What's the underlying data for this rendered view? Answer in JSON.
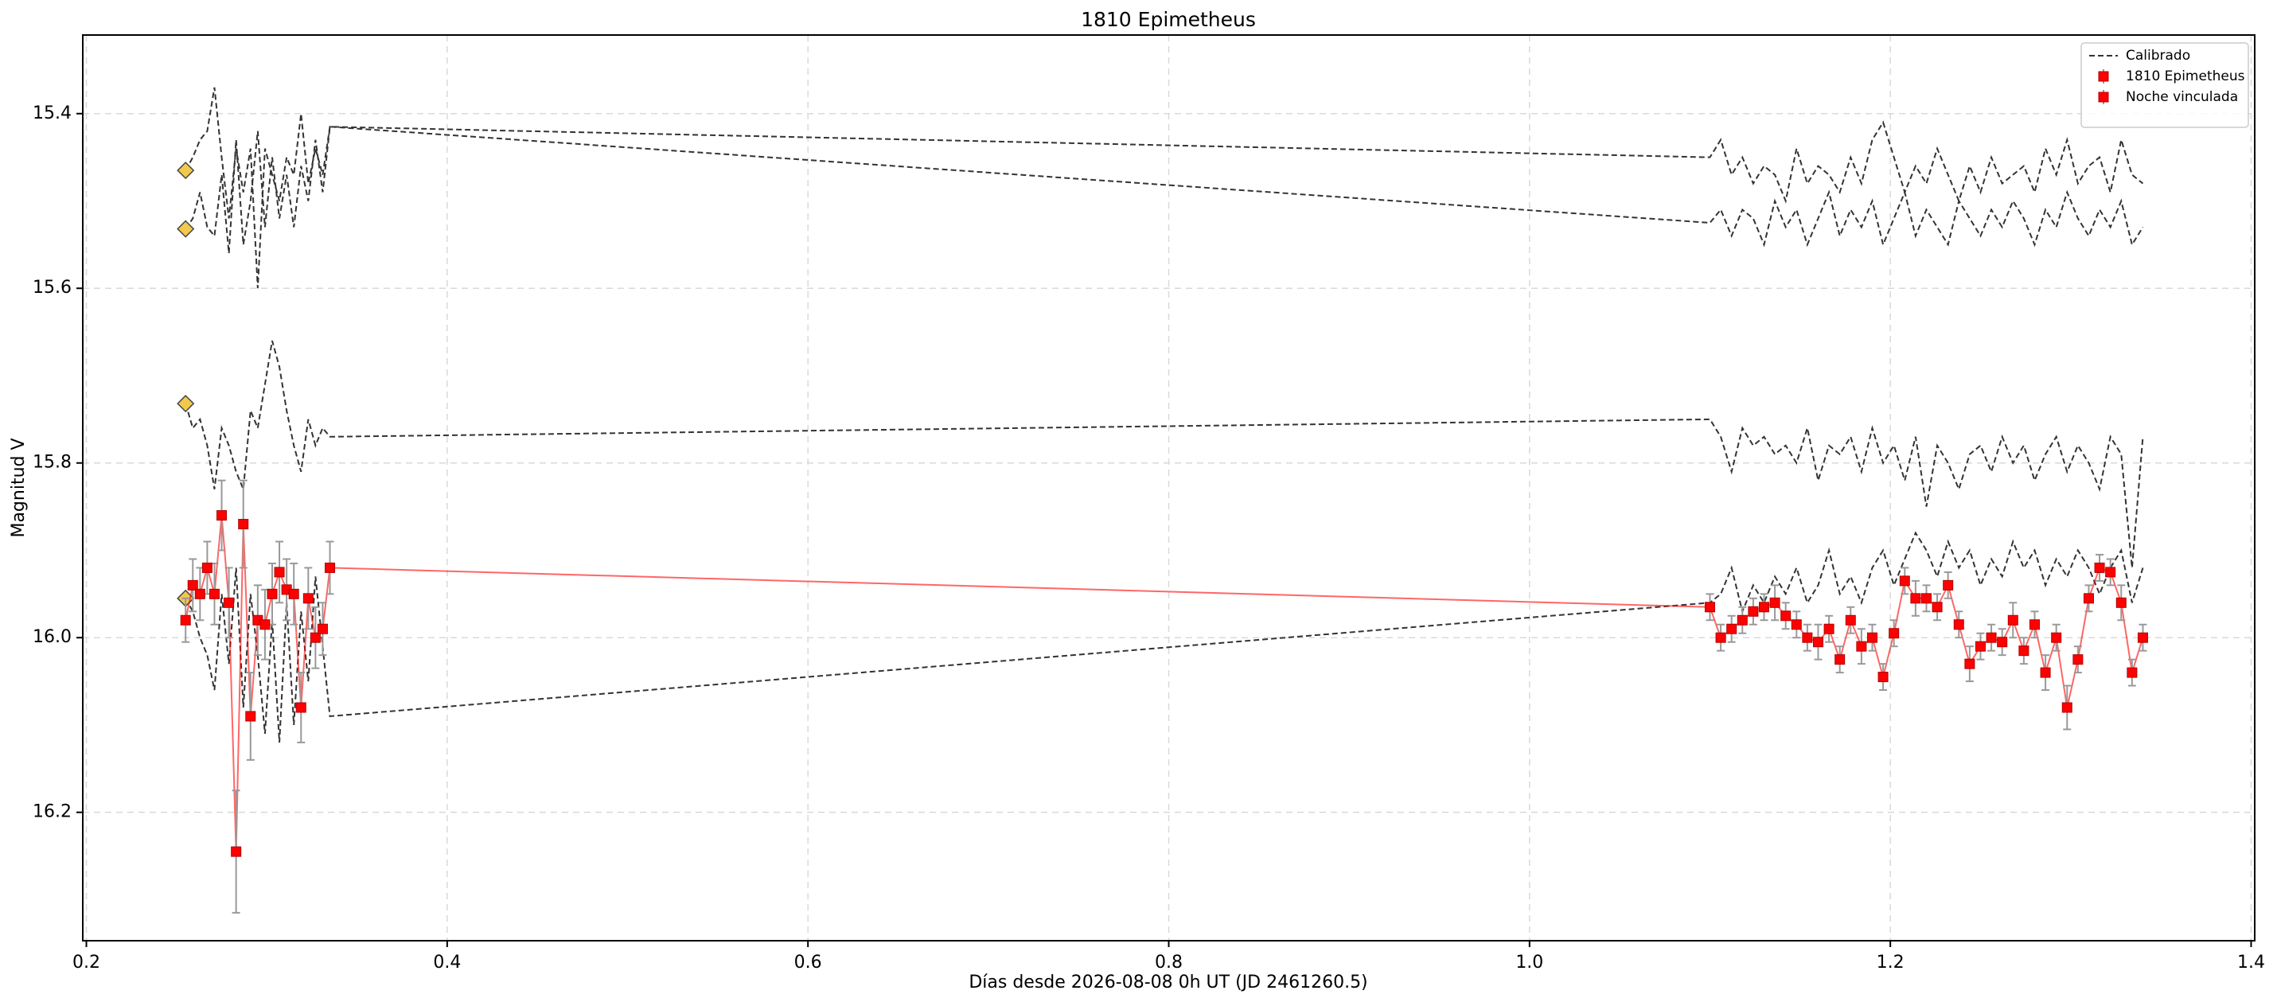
{
  "chart_data": {
    "type": "line",
    "title": "1810 Epimetheus",
    "xlabel": "Días desde 2026-08-08 0h UT (JD 2461260.5)",
    "ylabel": "Magnitud V",
    "xlim": [
      0.198,
      1.402
    ],
    "ylim": [
      15.31,
      16.347
    ],
    "y_inverted": true,
    "grid": true,
    "legend": "upper right",
    "xticks": [
      0.2,
      0.4,
      0.6,
      0.8,
      {
        "value": 1.0,
        "label": "1.0"
      },
      1.2,
      1.4
    ],
    "yticks": [
      15.4,
      15.6,
      15.8,
      {
        "value": 16.0,
        "label": "16.0"
      },
      16.2
    ],
    "calibrated": {
      "name": "Calibrado",
      "color": "#333333",
      "x": [
        0.255,
        0.259,
        0.263,
        0.267,
        0.271,
        0.275,
        0.279,
        0.283,
        0.287,
        0.291,
        0.295,
        0.299,
        0.303,
        0.307,
        0.311,
        0.315,
        0.319,
        0.323,
        0.327,
        0.331,
        0.335,
        1.1,
        1.106,
        1.112,
        1.118,
        1.124,
        1.13,
        1.136,
        1.142,
        1.148,
        1.154,
        1.16,
        1.166,
        1.172,
        1.178,
        1.184,
        1.19,
        1.196,
        1.202,
        1.208,
        1.214,
        1.22,
        1.226,
        1.232,
        1.238,
        1.244,
        1.25,
        1.256,
        1.262,
        1.268,
        1.274,
        1.28,
        1.286,
        1.292,
        1.298,
        1.304,
        1.31,
        1.316,
        1.322,
        1.328,
        1.334,
        1.34
      ],
      "lines": [
        [
          15.465,
          15.45,
          15.43,
          15.42,
          15.37,
          15.45,
          15.52,
          15.44,
          15.49,
          15.44,
          15.6,
          15.44,
          15.47,
          15.5,
          15.45,
          15.47,
          15.4,
          15.48,
          15.44,
          15.47,
          15.415,
          15.45,
          15.43,
          15.47,
          15.45,
          15.48,
          15.46,
          15.47,
          15.5,
          15.44,
          15.48,
          15.46,
          15.47,
          15.49,
          15.45,
          15.48,
          15.43,
          15.41,
          15.45,
          15.49,
          15.46,
          15.48,
          15.44,
          15.47,
          15.5,
          15.46,
          15.49,
          15.45,
          15.48,
          15.47,
          15.46,
          15.49,
          15.44,
          15.47,
          15.43,
          15.48,
          15.46,
          15.45,
          15.49,
          15.43,
          15.47,
          15.48
        ],
        [
          15.532,
          15.52,
          15.49,
          15.53,
          15.54,
          15.47,
          15.56,
          15.43,
          15.55,
          15.5,
          15.42,
          15.53,
          15.45,
          15.52,
          15.47,
          15.53,
          15.46,
          15.5,
          15.43,
          15.49,
          15.415,
          15.525,
          15.51,
          15.54,
          15.51,
          15.52,
          15.55,
          15.5,
          15.53,
          15.51,
          15.55,
          15.52,
          15.49,
          15.54,
          15.51,
          15.53,
          15.5,
          15.55,
          15.52,
          15.49,
          15.54,
          15.51,
          15.53,
          15.55,
          15.5,
          15.52,
          15.54,
          15.51,
          15.53,
          15.5,
          15.52,
          15.55,
          15.51,
          15.53,
          15.49,
          15.52,
          15.54,
          15.51,
          15.53,
          15.5,
          15.55,
          15.53
        ],
        [
          15.732,
          15.76,
          15.75,
          15.78,
          15.83,
          15.76,
          15.78,
          15.81,
          15.83,
          15.74,
          15.76,
          15.71,
          15.66,
          15.69,
          15.74,
          15.78,
          15.81,
          15.75,
          15.78,
          15.76,
          15.77,
          15.75,
          15.77,
          15.81,
          15.76,
          15.78,
          15.77,
          15.79,
          15.78,
          15.8,
          15.76,
          15.82,
          15.78,
          15.79,
          15.77,
          15.81,
          15.76,
          15.8,
          15.78,
          15.82,
          15.77,
          15.85,
          15.78,
          15.8,
          15.83,
          15.79,
          15.78,
          15.81,
          15.77,
          15.8,
          15.78,
          15.82,
          15.79,
          15.77,
          15.81,
          15.78,
          15.8,
          15.83,
          15.77,
          15.79,
          15.92,
          15.77
        ],
        [
          15.955,
          15.97,
          16.0,
          16.02,
          16.06,
          15.95,
          16.03,
          15.92,
          16.08,
          15.95,
          16.02,
          16.11,
          15.98,
          16.12,
          15.96,
          16.1,
          15.97,
          16.05,
          15.93,
          16.01,
          16.09,
          15.96,
          15.95,
          15.92,
          15.97,
          15.94,
          15.96,
          15.93,
          15.95,
          15.92,
          15.96,
          15.94,
          15.9,
          15.95,
          15.93,
          15.96,
          15.92,
          15.9,
          15.94,
          15.91,
          15.88,
          15.9,
          15.93,
          15.89,
          15.92,
          15.9,
          15.94,
          15.91,
          15.93,
          15.89,
          15.92,
          15.9,
          15.94,
          15.91,
          15.93,
          15.9,
          15.92,
          15.95,
          15.92,
          15.9,
          15.96,
          15.92
        ]
      ]
    },
    "markers": {
      "color": "#f2c94c",
      "x": [
        0.255,
        0.255,
        0.255,
        0.255
      ],
      "values": [
        15.465,
        15.532,
        15.732,
        15.955
      ]
    },
    "series": [
      {
        "name": "1810 Epimetheus",
        "color": "#ff0000",
        "x": [
          0.255,
          0.259,
          0.263,
          0.267,
          0.271,
          0.275,
          0.279,
          0.283,
          0.287,
          0.291,
          0.295,
          0.299,
          0.303,
          0.307,
          0.311,
          0.315,
          0.319,
          0.323,
          0.327,
          0.331,
          0.335
        ],
        "values": [
          15.98,
          15.94,
          15.95,
          15.92,
          15.95,
          15.86,
          15.96,
          16.245,
          15.87,
          16.09,
          15.98,
          15.985,
          15.95,
          15.925,
          15.945,
          15.95,
          16.08,
          15.955,
          16.0,
          15.99,
          15.92
        ],
        "errors": [
          0.025,
          0.03,
          0.03,
          0.03,
          0.035,
          0.04,
          0.04,
          0.07,
          0.05,
          0.05,
          0.04,
          0.04,
          0.035,
          0.035,
          0.035,
          0.035,
          0.04,
          0.035,
          0.035,
          0.03,
          0.03
        ]
      },
      {
        "name": "Noche vinculada",
        "color": "#ff0000",
        "x": [
          1.1,
          1.106,
          1.112,
          1.118,
          1.124,
          1.13,
          1.136,
          1.142,
          1.148,
          1.154,
          1.16,
          1.166,
          1.172,
          1.178,
          1.184,
          1.19,
          1.196,
          1.202,
          1.208,
          1.214,
          1.22,
          1.226,
          1.232,
          1.238,
          1.244,
          1.25,
          1.256,
          1.262,
          1.268,
          1.274,
          1.28,
          1.286,
          1.292,
          1.298,
          1.304,
          1.31,
          1.316,
          1.322,
          1.328,
          1.334,
          1.34
        ],
        "values": [
          15.965,
          16.0,
          15.99,
          15.98,
          15.97,
          15.965,
          15.96,
          15.975,
          15.985,
          16.0,
          16.005,
          15.99,
          16.025,
          15.98,
          16.01,
          16.0,
          16.045,
          15.995,
          15.935,
          15.955,
          15.955,
          15.965,
          15.94,
          15.985,
          16.03,
          16.01,
          16.0,
          16.005,
          15.98,
          16.015,
          15.985,
          16.04,
          16.0,
          16.08,
          16.025,
          15.955,
          15.92,
          15.925,
          15.96,
          16.04,
          16.0
        ],
        "errors": [
          0.015,
          0.015,
          0.015,
          0.015,
          0.015,
          0.015,
          0.02,
          0.015,
          0.015,
          0.015,
          0.02,
          0.015,
          0.015,
          0.015,
          0.02,
          0.015,
          0.015,
          0.015,
          0.015,
          0.02,
          0.015,
          0.015,
          0.015,
          0.015,
          0.02,
          0.015,
          0.015,
          0.015,
          0.02,
          0.015,
          0.015,
          0.02,
          0.015,
          0.025,
          0.015,
          0.015,
          0.015,
          0.015,
          0.02,
          0.015,
          0.015
        ]
      }
    ]
  }
}
